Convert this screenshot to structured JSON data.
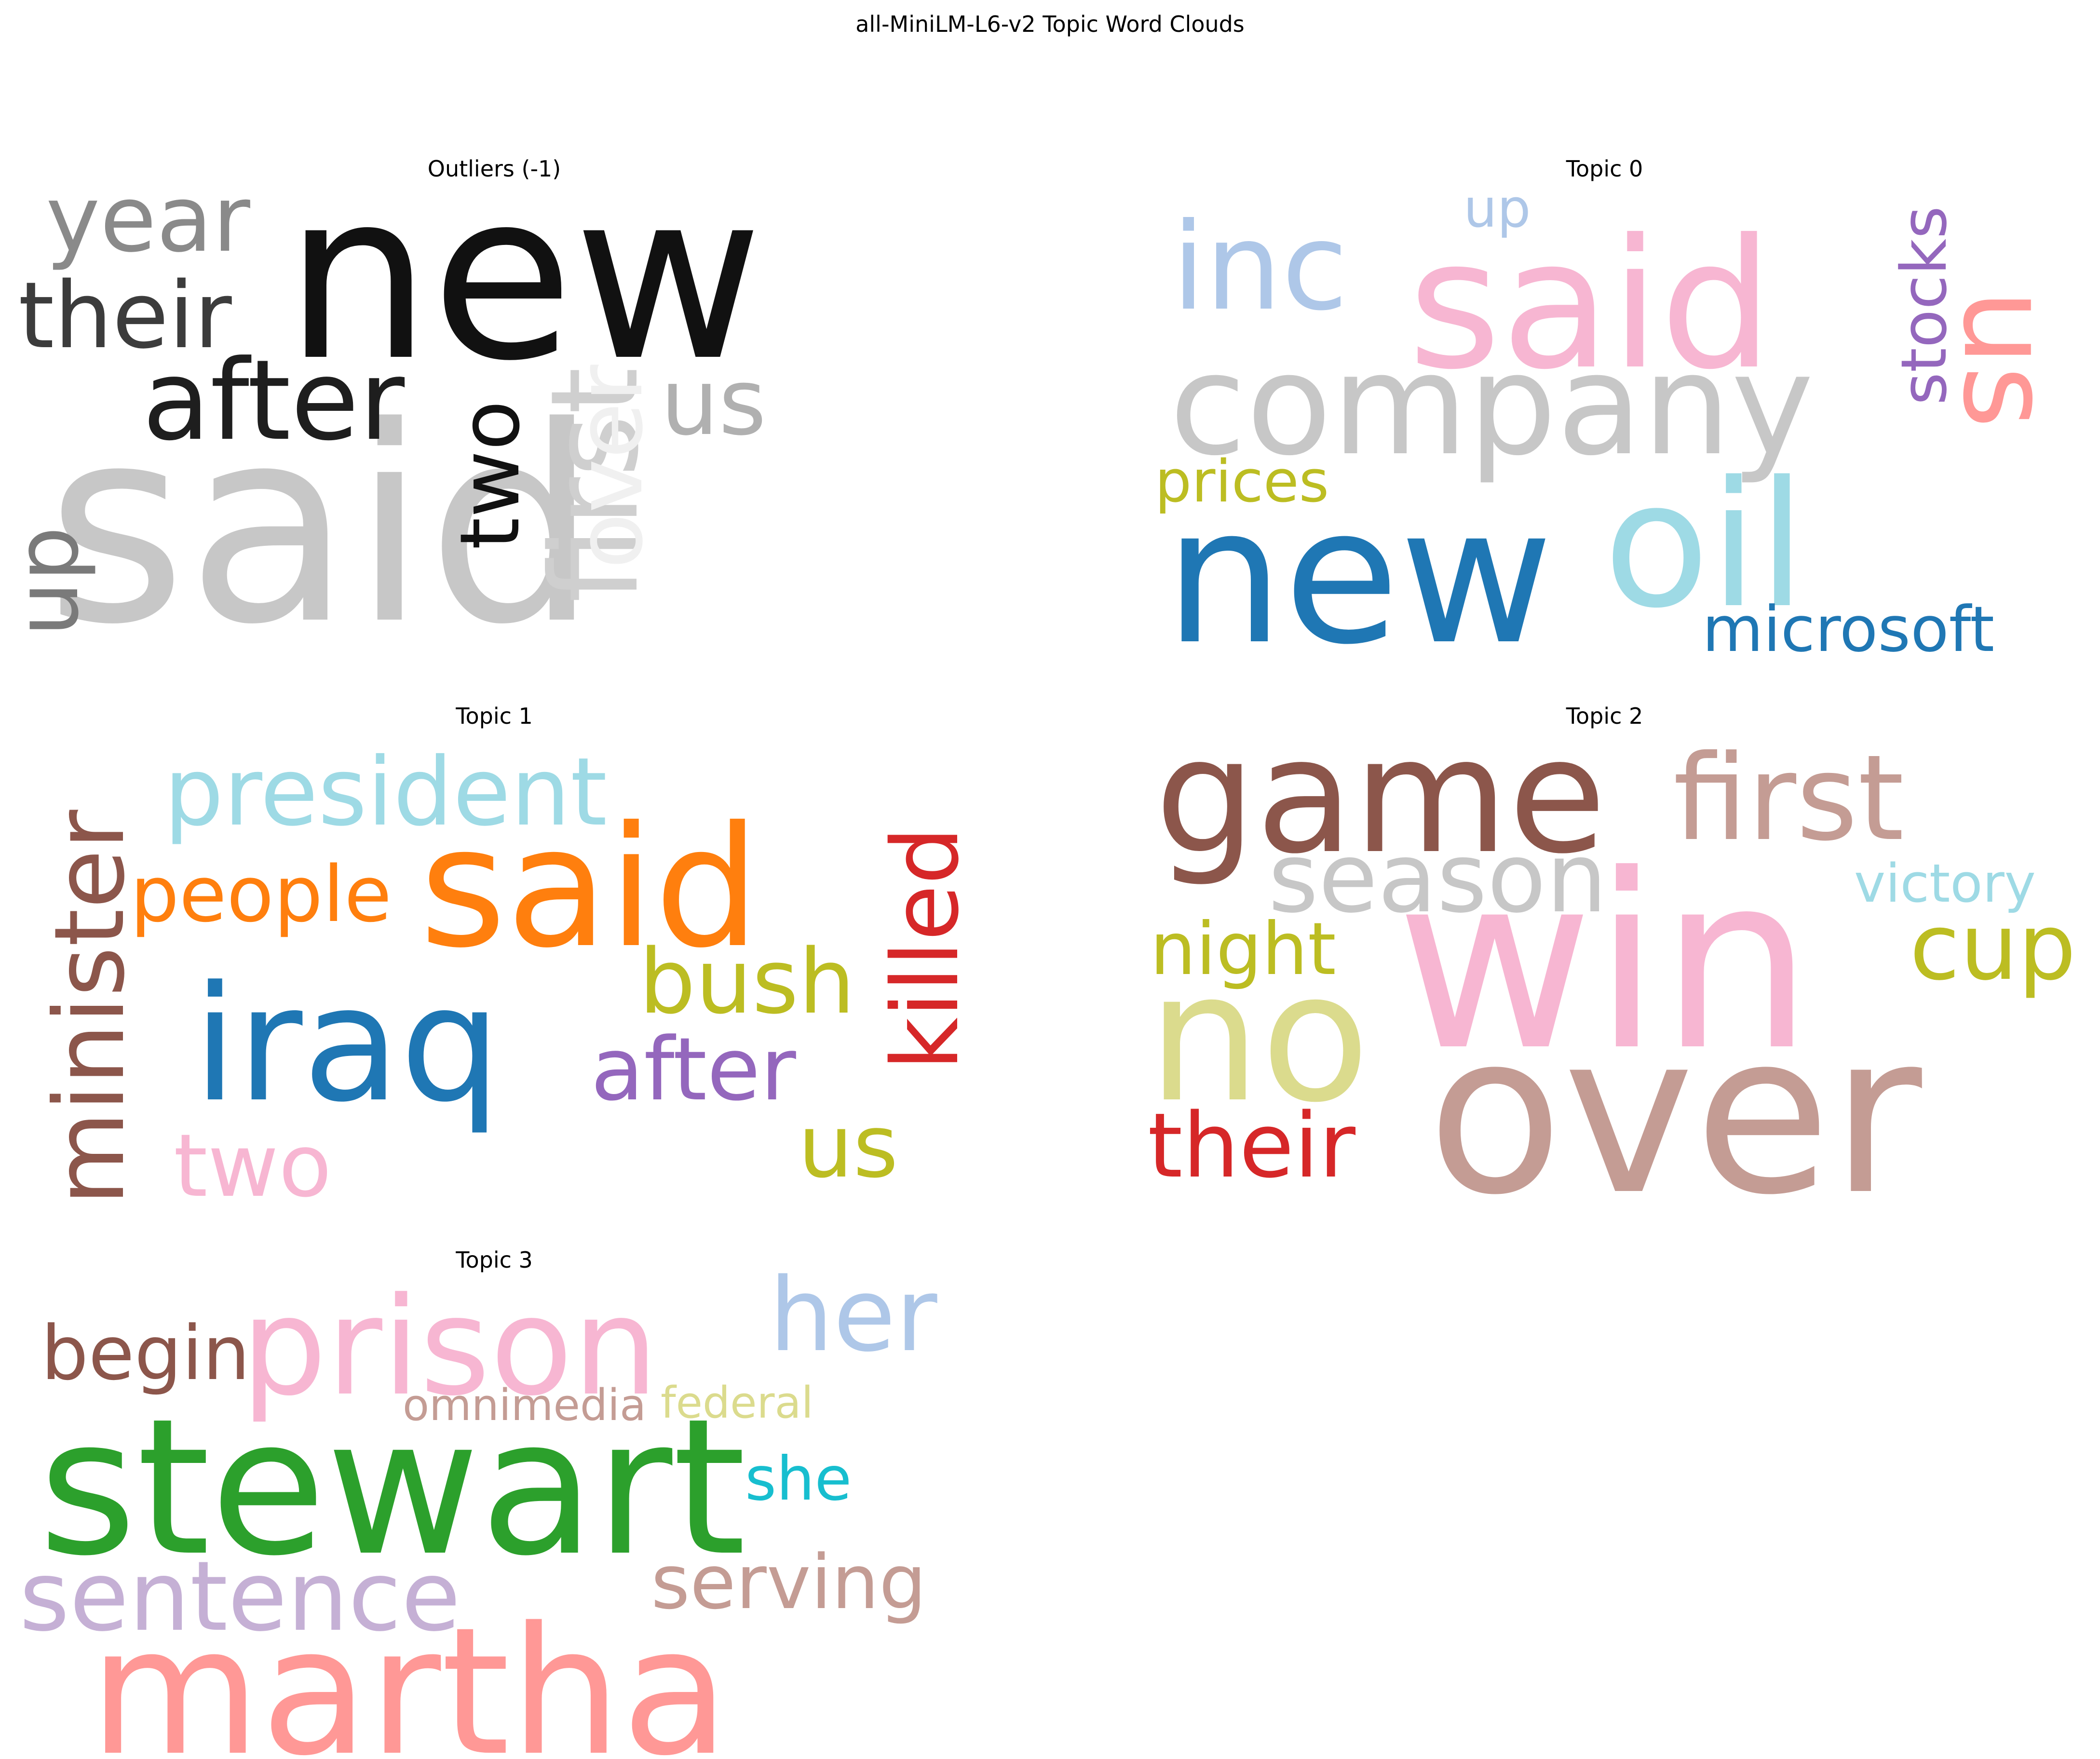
{
  "figure": {
    "title": "all-MiniLM-L6-v2 Topic Word Clouds"
  },
  "panels": [
    {
      "title": "Outliers (-1)",
      "words": [
        {
          "text": "new",
          "color": "#111111"
        },
        {
          "text": "said",
          "color": "#c7c7c7"
        },
        {
          "text": "year",
          "color": "#8a8a8a"
        },
        {
          "text": "their",
          "color": "#3c3c3c"
        },
        {
          "text": "after",
          "color": "#1e1e1e"
        },
        {
          "text": "two",
          "color": "#111111"
        },
        {
          "text": "us",
          "color": "#b0b0b0"
        },
        {
          "text": "over",
          "color": "#f0f0f0"
        },
        {
          "text": "first",
          "color": "#cfcfcf"
        },
        {
          "text": "up",
          "color": "#7a7a7a"
        }
      ]
    },
    {
      "title": "Topic 0",
      "words": [
        {
          "text": "said",
          "color": "#f7b6d2"
        },
        {
          "text": "inc",
          "color": "#aec7e8"
        },
        {
          "text": "up",
          "color": "#aec7e8"
        },
        {
          "text": "stocks",
          "color": "#9467bd"
        },
        {
          "text": "us",
          "color": "#ff9896"
        },
        {
          "text": "company",
          "color": "#c7c7c7"
        },
        {
          "text": "prices",
          "color": "#bcbd22"
        },
        {
          "text": "oil",
          "color": "#9edae5"
        },
        {
          "text": "new",
          "color": "#1f77b4"
        },
        {
          "text": "microsoft",
          "color": "#1f77b4"
        }
      ]
    },
    {
      "title": "Topic 1",
      "words": [
        {
          "text": "minister",
          "color": "#8c564b"
        },
        {
          "text": "president",
          "color": "#9edae5"
        },
        {
          "text": "killed",
          "color": "#d62728"
        },
        {
          "text": "people",
          "color": "#ff7f0e"
        },
        {
          "text": "said",
          "color": "#ff7f0e"
        },
        {
          "text": "iraq",
          "color": "#1f77b4"
        },
        {
          "text": "bush",
          "color": "#bcbd22"
        },
        {
          "text": "after",
          "color": "#9467bd"
        },
        {
          "text": "two",
          "color": "#f7b6d2"
        },
        {
          "text": "us",
          "color": "#bcbd22"
        }
      ]
    },
    {
      "title": "Topic 2",
      "words": [
        {
          "text": "game",
          "color": "#8c564b"
        },
        {
          "text": "first",
          "color": "#c49c94"
        },
        {
          "text": "season",
          "color": "#c7c7c7"
        },
        {
          "text": "victory",
          "color": "#9edae5"
        },
        {
          "text": "night",
          "color": "#bcbd22"
        },
        {
          "text": "win",
          "color": "#f7b6d2"
        },
        {
          "text": "cup",
          "color": "#bcbd22"
        },
        {
          "text": "no",
          "color": "#dbdb8d"
        },
        {
          "text": "their",
          "color": "#d62728"
        },
        {
          "text": "over",
          "color": "#c49c94"
        }
      ]
    },
    {
      "title": "Topic 3",
      "words": [
        {
          "text": "begin",
          "color": "#8c564b"
        },
        {
          "text": "prison",
          "color": "#f7b6d2"
        },
        {
          "text": "her",
          "color": "#aec7e8"
        },
        {
          "text": "omnimedia",
          "color": "#c49c94"
        },
        {
          "text": "federal",
          "color": "#dbdb8d"
        },
        {
          "text": "stewart",
          "color": "#2ca02c"
        },
        {
          "text": "she",
          "color": "#17becf"
        },
        {
          "text": "sentence",
          "color": "#c5b0d5"
        },
        {
          "text": "serving",
          "color": "#c49c94"
        },
        {
          "text": "martha",
          "color": "#ff9896"
        }
      ]
    }
  ]
}
